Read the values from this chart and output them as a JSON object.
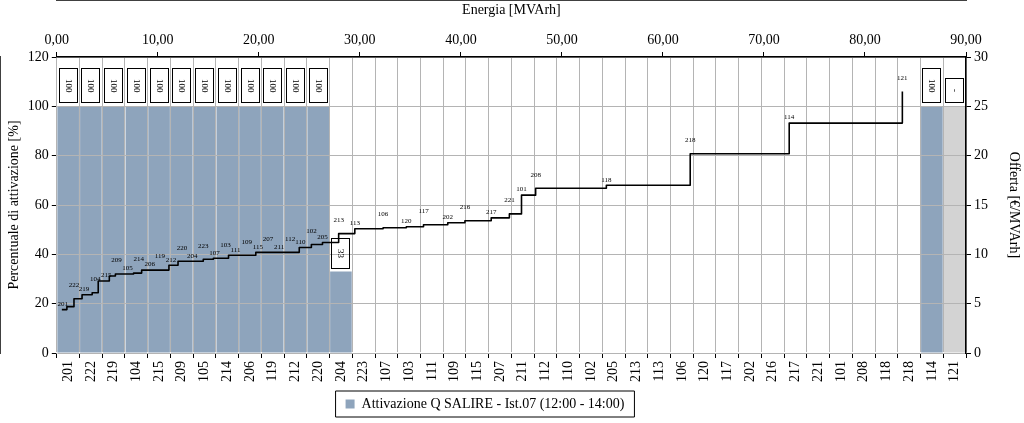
{
  "chart_data": [
    {
      "type": "bar",
      "ylabel": "Percentuale di attivazione [%]",
      "categories": [
        "201",
        "222",
        "219",
        "104",
        "215",
        "209",
        "105",
        "214",
        "206",
        "119",
        "212",
        "220",
        "204",
        "223",
        "107",
        "103",
        "111",
        "109",
        "115",
        "207",
        "211",
        "112",
        "110",
        "102",
        "205",
        "213",
        "113",
        "106",
        "120",
        "117",
        "202",
        "216",
        "217",
        "221",
        "101",
        "208",
        "118",
        "218",
        "114",
        "121"
      ],
      "series": [
        {
          "name": "Attivazione Q SALIRE - Ist.07 (12:00 - 14:00)",
          "color": "#8ea4bc",
          "colors": [
            "#8ea4bc",
            "#8ea4bc",
            "#8ea4bc",
            "#8ea4bc",
            "#8ea4bc",
            "#8ea4bc",
            "#8ea4bc",
            "#8ea4bc",
            "#8ea4bc",
            "#8ea4bc",
            "#8ea4bc",
            "#8ea4bc",
            "#8ea4bc",
            null,
            null,
            null,
            null,
            null,
            null,
            null,
            null,
            null,
            null,
            null,
            null,
            null,
            null,
            null,
            null,
            null,
            null,
            null,
            null,
            null,
            null,
            null,
            null,
            null,
            "#8ea4bc",
            "#d3d3d3"
          ],
          "values": [
            100,
            100,
            100,
            100,
            100,
            100,
            100,
            100,
            100,
            100,
            100,
            100,
            33,
            null,
            null,
            null,
            null,
            null,
            null,
            null,
            null,
            null,
            null,
            null,
            null,
            null,
            null,
            null,
            null,
            null,
            null,
            null,
            null,
            null,
            null,
            null,
            null,
            null,
            100,
            100
          ],
          "value_labels": [
            "100",
            "100",
            "100",
            "100",
            "100",
            "100",
            "100",
            "100",
            "100",
            "100",
            "100",
            "100",
            "33",
            null,
            null,
            null,
            null,
            null,
            null,
            null,
            null,
            null,
            null,
            null,
            null,
            null,
            null,
            null,
            null,
            null,
            null,
            null,
            null,
            null,
            null,
            null,
            null,
            null,
            "100",
            "-"
          ]
        }
      ],
      "ylim": [
        0,
        120
      ],
      "yticks": [
        0,
        20,
        40,
        60,
        80,
        100,
        120
      ],
      "grid": true,
      "legend": "bottom"
    },
    {
      "type": "step",
      "xlabel": "Energia [MVArh]",
      "ylabel": "Offerta [€/MVArh]",
      "x": [
        0.5,
        1.0,
        1.7,
        2.5,
        3.5,
        4.1,
        5.2,
        5.8,
        7.6,
        8.4,
        11.1,
        12.0,
        14.5,
        15.5,
        17.0,
        19.7,
        24.0,
        25.2,
        26.3,
        27.9,
        29.5,
        32.3,
        34.6,
        36.3,
        38.7,
        40.4,
        43.0,
        44.8,
        46.0,
        47.4,
        54.4,
        62.7,
        72.5,
        83.7
      ],
      "series": [
        {
          "color": "#000000",
          "values": [
            4.4,
            4.7,
            5.5,
            5.9,
            6.1,
            7.3,
            7.8,
            8.0,
            8.1,
            8.4,
            8.9,
            9.3,
            9.5,
            9.6,
            9.9,
            10.2,
            10.7,
            11.0,
            11.2,
            12.1,
            12.6,
            12.7,
            12.8,
            13.0,
            13.2,
            13.4,
            13.7,
            14.1,
            16.0,
            16.7,
            17.0,
            20.2,
            23.3,
            26.5
          ]
        }
      ],
      "xlim": [
        0,
        90
      ],
      "xticks": [
        {
          "value": 0,
          "label": "0,00"
        },
        {
          "value": 10,
          "label": "10,00"
        },
        {
          "value": 20,
          "label": "20,00"
        },
        {
          "value": 30,
          "label": "30,00"
        },
        {
          "value": 40,
          "label": "40,00"
        },
        {
          "value": 50,
          "label": "50,00"
        },
        {
          "value": 60,
          "label": "60,00"
        },
        {
          "value": 70,
          "label": "70,00"
        },
        {
          "value": 80,
          "label": "80,00"
        },
        {
          "value": 90,
          "label": "90,00"
        }
      ],
      "ylim": [
        0,
        30
      ],
      "yticks": [
        0,
        5,
        10,
        15,
        20,
        25,
        30
      ],
      "annotations": [
        {
          "text": "201",
          "x": 0.6,
          "y": 4.4
        },
        {
          "text": "222",
          "x": 1.7,
          "y": 5.5
        },
        {
          "text": "219",
          "x": 2.7,
          "y": 5.9
        },
        {
          "text": "104",
          "x": 3.8,
          "y": 6.1
        },
        {
          "text": "215",
          "x": 4.9,
          "y": 7.3
        },
        {
          "text": "209",
          "x": 5.9,
          "y": 8.0
        },
        {
          "text": "105",
          "x": 7.0,
          "y": 8.0
        },
        {
          "text": "214",
          "x": 8.1,
          "y": 8.1
        },
        {
          "text": "206",
          "x": 9.2,
          "y": 8.4
        },
        {
          "text": "119",
          "x": 10.2,
          "y": 8.4
        },
        {
          "text": "212",
          "x": 11.3,
          "y": 8.9
        },
        {
          "text": "220",
          "x": 12.4,
          "y": 9.3
        },
        {
          "text": "204",
          "x": 13.4,
          "y": 9.3
        },
        {
          "text": "223",
          "x": 14.5,
          "y": 9.5
        },
        {
          "text": "107",
          "x": 15.6,
          "y": 9.6
        },
        {
          "text": "103",
          "x": 16.7,
          "y": 9.6
        },
        {
          "text": "111",
          "x": 17.7,
          "y": 9.9
        },
        {
          "text": "109",
          "x": 18.8,
          "y": 9.9
        },
        {
          "text": "115",
          "x": 19.9,
          "y": 10.2
        },
        {
          "text": "207",
          "x": 20.9,
          "y": 10.2
        },
        {
          "text": "211",
          "x": 22.0,
          "y": 10.2
        },
        {
          "text": "112",
          "x": 23.1,
          "y": 10.2
        },
        {
          "text": "110",
          "x": 24.1,
          "y": 10.7
        },
        {
          "text": "102",
          "x": 25.2,
          "y": 11.0
        },
        {
          "text": "205",
          "x": 26.3,
          "y": 11.2
        },
        {
          "text": "213",
          "x": 27.9,
          "y": 12.1
        },
        {
          "text": "113",
          "x": 29.5,
          "y": 12.6
        },
        {
          "text": "106",
          "x": 32.3,
          "y": 12.7
        },
        {
          "text": "120",
          "x": 34.6,
          "y": 12.8
        },
        {
          "text": "117",
          "x": 36.3,
          "y": 13.0
        },
        {
          "text": "202",
          "x": 38.7,
          "y": 13.2
        },
        {
          "text": "216",
          "x": 40.4,
          "y": 13.4
        },
        {
          "text": "217",
          "x": 43.0,
          "y": 13.7
        },
        {
          "text": "221",
          "x": 44.8,
          "y": 14.1
        },
        {
          "text": "101",
          "x": 46.0,
          "y": 16.0
        },
        {
          "text": "208",
          "x": 47.4,
          "y": 16.7
        },
        {
          "text": "118",
          "x": 54.4,
          "y": 17.0
        },
        {
          "text": "218",
          "x": 62.7,
          "y": 20.2
        },
        {
          "text": "114",
          "x": 72.5,
          "y": 23.3
        },
        {
          "text": "121",
          "x": 83.7,
          "y": 26.5
        }
      ]
    }
  ]
}
